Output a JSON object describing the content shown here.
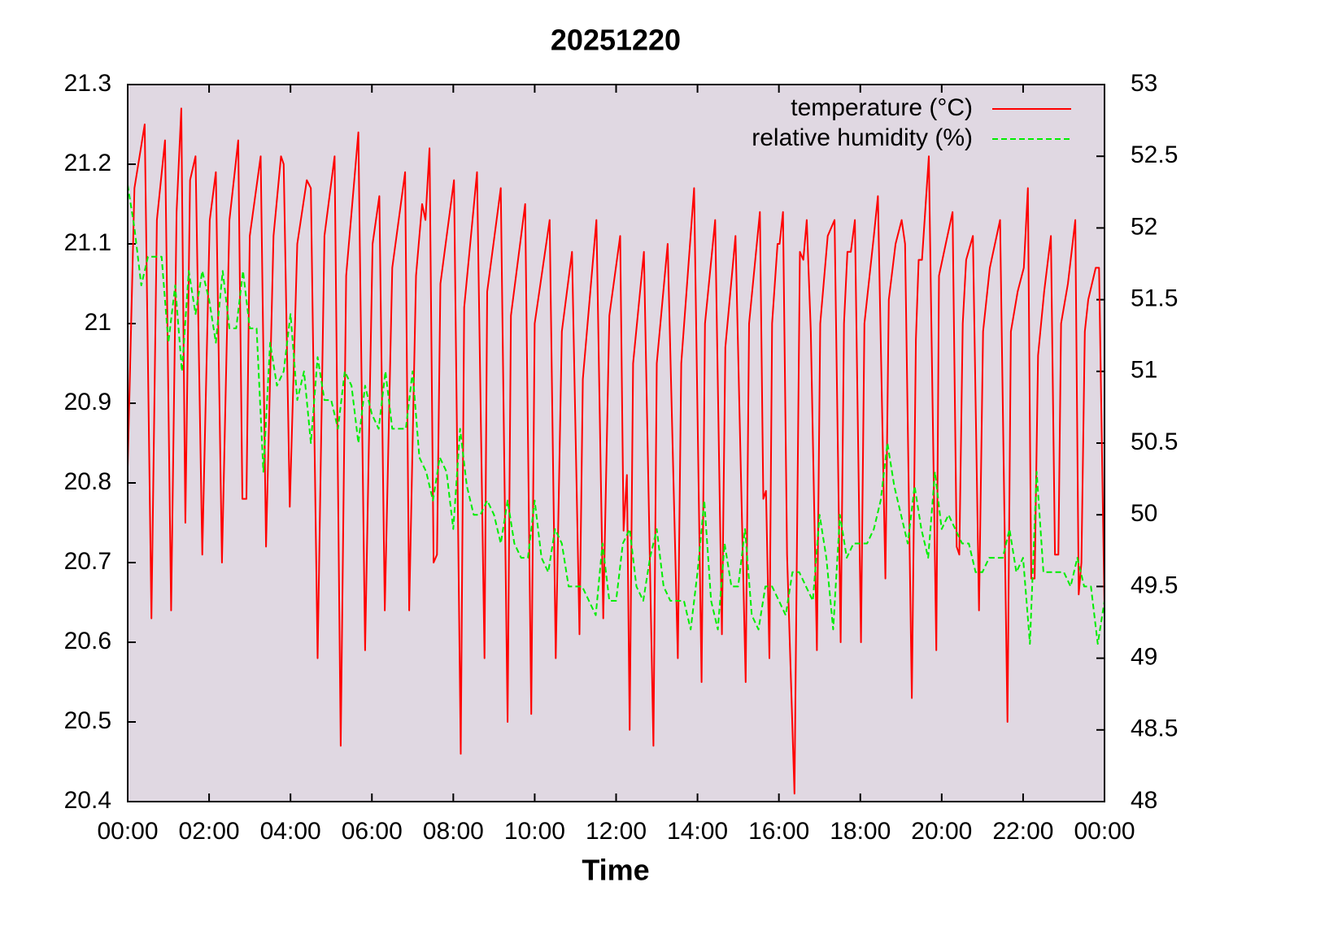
{
  "chart_data": {
    "type": "line",
    "title": "20251220",
    "xlabel": "Time",
    "xlim": [
      0,
      1440
    ],
    "xticks": [
      {
        "value": 0,
        "label": "00:00"
      },
      {
        "value": 120,
        "label": "02:00"
      },
      {
        "value": 240,
        "label": "04:00"
      },
      {
        "value": 360,
        "label": "06:00"
      },
      {
        "value": 480,
        "label": "08:00"
      },
      {
        "value": 600,
        "label": "10:00"
      },
      {
        "value": 720,
        "label": "12:00"
      },
      {
        "value": 840,
        "label": "14:00"
      },
      {
        "value": 960,
        "label": "16:00"
      },
      {
        "value": 1080,
        "label": "18:00"
      },
      {
        "value": 1200,
        "label": "20:00"
      },
      {
        "value": 1320,
        "label": "22:00"
      },
      {
        "value": 1440,
        "label": "00:00"
      }
    ],
    "ylim": [
      20.4,
      21.3
    ],
    "yticks": [
      20.4,
      20.5,
      20.6,
      20.7,
      20.8,
      20.9,
      21,
      21.1,
      21.2,
      21.3
    ],
    "y2lim": [
      48,
      53
    ],
    "y2ticks": [
      48,
      48.5,
      49,
      49.5,
      50,
      50.5,
      51,
      51.5,
      52,
      52.5,
      53
    ],
    "legend": "upper right",
    "background": "#e0d8e2",
    "series": [
      {
        "name": "temperature (°C)",
        "color": "#ff0000",
        "dash": false,
        "x": [
          0,
          10,
          25,
          35,
          43,
          55,
          64,
          72,
          79,
          85,
          92,
          100,
          110,
          121,
          130,
          139,
          150,
          163,
          169,
          175,
          180,
          196,
          204,
          215,
          226,
          230,
          239,
          250,
          264,
          270,
          280,
          290,
          305,
          314,
          322,
          340,
          350,
          361,
          371,
          379,
          390,
          409,
          415,
          425,
          434,
          439,
          445,
          451,
          456,
          461,
          481,
          491,
          496,
          515,
          526,
          530,
          550,
          560,
          565,
          586,
          595,
          600,
          622,
          631,
          640,
          655,
          666,
          671,
          691,
          701,
          710,
          726,
          731,
          736,
          740,
          745,
          761,
          775,
          780,
          796,
          811,
          816,
          835,
          846,
          851,
          866,
          876,
          881,
          896,
          911,
          916,
          932,
          937,
          941,
          946,
          950,
          958,
          961,
          966,
          972,
          983,
          991,
          996,
          1001,
          1007,
          1016,
          1021,
          1032,
          1042,
          1051,
          1056,
          1061,
          1066,
          1072,
          1081,
          1086,
          1100,
          1106,
          1117,
          1122,
          1132,
          1141,
          1146,
          1156,
          1162,
          1166,
          1171,
          1181,
          1192,
          1196,
          1206,
          1216,
          1222,
          1226,
          1231,
          1236,
          1246,
          1255,
          1261,
          1271,
          1286,
          1297,
          1302,
          1312,
          1321,
          1327,
          1332,
          1337,
          1342,
          1351,
          1361,
          1367,
          1372,
          1376,
          1386,
          1397,
          1402,
          1406,
          1411,
          1416,
          1427,
          1432,
          1440
        ],
        "values": [
          20.82,
          21.17,
          21.25,
          20.63,
          21.13,
          21.23,
          20.64,
          21.14,
          21.27,
          20.75,
          21.18,
          21.21,
          20.71,
          21.13,
          21.19,
          20.7,
          21.13,
          21.23,
          20.78,
          20.78,
          21.11,
          21.21,
          20.72,
          21.11,
          21.21,
          21.2,
          20.77,
          21.1,
          21.18,
          21.17,
          20.58,
          21.11,
          21.21,
          20.47,
          21.06,
          21.24,
          20.59,
          21.1,
          21.16,
          20.64,
          21.07,
          21.19,
          20.64,
          21.06,
          21.15,
          21.13,
          21.22,
          20.7,
          20.71,
          21.05,
          21.18,
          20.46,
          21.02,
          21.19,
          20.58,
          21.04,
          21.17,
          20.5,
          21.01,
          21.15,
          20.51,
          21.0,
          21.13,
          20.58,
          20.99,
          21.09,
          20.61,
          20.93,
          21.13,
          20.63,
          21.01,
          21.11,
          20.74,
          20.81,
          20.49,
          20.95,
          21.09,
          20.47,
          20.95,
          21.1,
          20.58,
          20.95,
          21.17,
          20.55,
          21.0,
          21.13,
          20.61,
          20.97,
          21.11,
          20.55,
          21.0,
          21.14,
          20.78,
          20.79,
          20.58,
          21.0,
          21.1,
          21.1,
          21.14,
          20.71,
          20.41,
          21.09,
          21.08,
          21.13,
          20.99,
          20.59,
          21.0,
          21.11,
          21.13,
          20.6,
          21.0,
          21.09,
          21.09,
          21.13,
          20.6,
          21.0,
          21.11,
          21.16,
          20.68,
          21.03,
          21.1,
          21.13,
          21.1,
          20.53,
          20.98,
          21.08,
          21.08,
          21.21,
          20.59,
          21.06,
          21.1,
          21.14,
          20.72,
          20.71,
          21.0,
          21.08,
          21.11,
          20.64,
          20.99,
          21.07,
          21.13,
          20.5,
          20.99,
          21.04,
          21.07,
          21.17,
          20.68,
          20.68,
          20.96,
          21.04,
          21.11,
          20.71,
          20.71,
          21.0,
          21.05,
          21.13,
          20.66,
          20.7,
          20.99,
          21.03,
          21.07,
          21.07,
          20.64
        ]
      },
      {
        "name": "relative humidity (%)",
        "color": "#00ee00",
        "dash": true,
        "axis": "y2",
        "x": [
          0,
          10,
          20,
          30,
          40,
          50,
          60,
          70,
          80,
          90,
          100,
          110,
          120,
          130,
          140,
          150,
          160,
          170,
          180,
          190,
          200,
          210,
          220,
          230,
          240,
          250,
          260,
          270,
          280,
          290,
          300,
          310,
          320,
          330,
          340,
          350,
          360,
          370,
          380,
          390,
          400,
          410,
          420,
          430,
          440,
          450,
          460,
          470,
          480,
          490,
          500,
          510,
          520,
          530,
          540,
          550,
          560,
          570,
          580,
          590,
          600,
          610,
          620,
          630,
          640,
          650,
          660,
          670,
          680,
          690,
          700,
          710,
          720,
          730,
          740,
          750,
          760,
          770,
          780,
          790,
          800,
          810,
          820,
          830,
          840,
          850,
          860,
          870,
          880,
          890,
          900,
          910,
          920,
          930,
          940,
          950,
          960,
          970,
          980,
          990,
          1000,
          1010,
          1020,
          1030,
          1040,
          1050,
          1060,
          1070,
          1080,
          1090,
          1100,
          1110,
          1120,
          1130,
          1140,
          1150,
          1160,
          1170,
          1180,
          1190,
          1200,
          1210,
          1220,
          1230,
          1240,
          1250,
          1260,
          1270,
          1280,
          1290,
          1300,
          1310,
          1320,
          1330,
          1340,
          1350,
          1360,
          1370,
          1380,
          1390,
          1400,
          1410,
          1420,
          1430,
          1440
        ],
        "values": [
          52.3,
          52.0,
          51.6,
          51.8,
          51.8,
          51.8,
          51.2,
          51.6,
          51.0,
          51.7,
          51.4,
          51.7,
          51.5,
          51.2,
          51.7,
          51.3,
          51.3,
          51.7,
          51.3,
          51.3,
          50.3,
          51.2,
          50.9,
          51.0,
          51.4,
          50.8,
          51.0,
          50.5,
          51.1,
          50.8,
          50.8,
          50.6,
          51.0,
          50.9,
          50.5,
          50.9,
          50.7,
          50.6,
          51.0,
          50.6,
          50.6,
          50.6,
          51.0,
          50.4,
          50.3,
          50.1,
          50.4,
          50.3,
          49.9,
          50.6,
          50.2,
          50.0,
          50.0,
          50.1,
          50.0,
          49.8,
          50.1,
          49.8,
          49.7,
          49.7,
          50.1,
          49.7,
          49.6,
          49.9,
          49.8,
          49.5,
          49.5,
          49.5,
          49.4,
          49.3,
          49.8,
          49.4,
          49.4,
          49.8,
          49.9,
          49.5,
          49.4,
          49.7,
          49.9,
          49.5,
          49.4,
          49.4,
          49.4,
          49.2,
          49.6,
          50.1,
          49.4,
          49.2,
          49.8,
          49.5,
          49.5,
          49.9,
          49.3,
          49.2,
          49.5,
          49.5,
          49.4,
          49.3,
          49.6,
          49.6,
          49.5,
          49.4,
          50.0,
          49.7,
          49.2,
          50.0,
          49.7,
          49.8,
          49.8,
          49.8,
          49.9,
          50.1,
          50.5,
          50.2,
          50.0,
          49.8,
          50.2,
          49.9,
          49.7,
          50.3,
          49.9,
          50.0,
          49.9,
          49.8,
          49.8,
          49.6,
          49.6,
          49.7,
          49.7,
          49.7,
          49.9,
          49.6,
          49.7,
          49.1,
          50.3,
          49.6,
          49.6,
          49.6,
          49.6,
          49.5,
          49.7,
          49.5,
          49.5,
          49.1,
          49.4
        ]
      }
    ]
  }
}
